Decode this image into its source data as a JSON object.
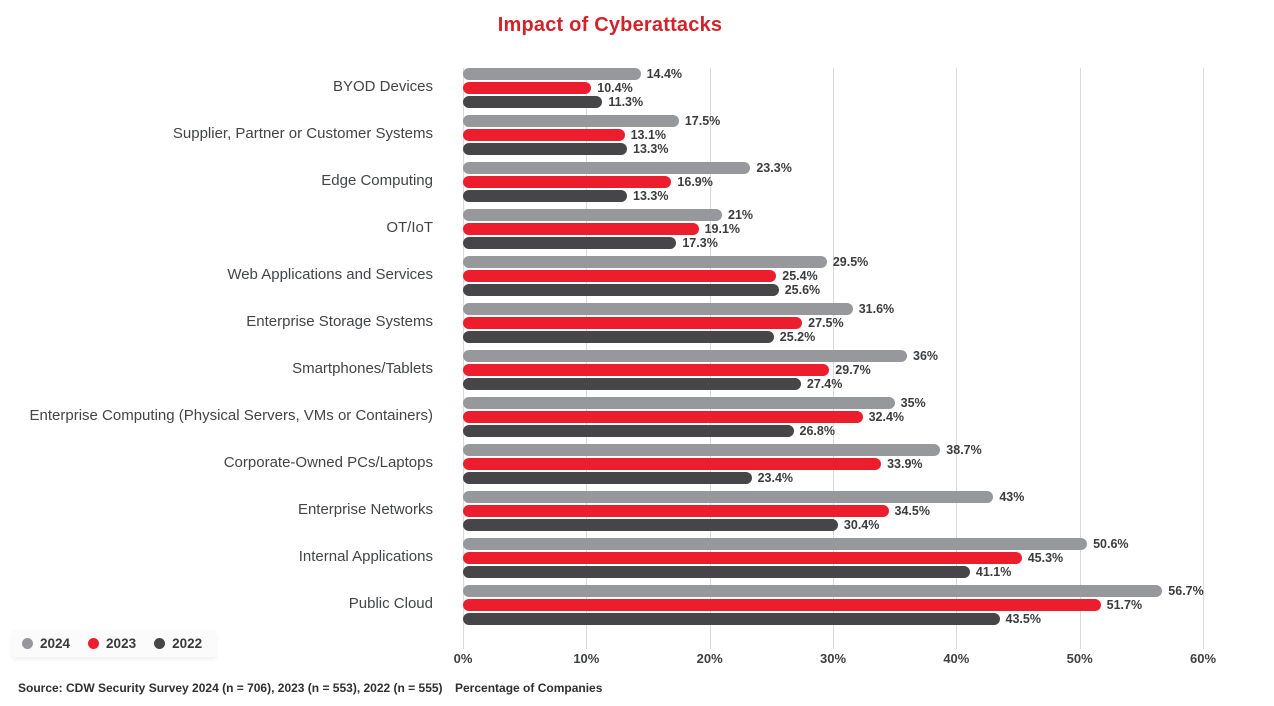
{
  "chart": {
    "title": "Impact of Cyberattacks",
    "title_color": "#d2232a",
    "source": "Source: CDW Security Survey 2024 (n = 706), 2023 (n = 553), 2022 (n = 555)",
    "xlabel": "Percentage of Companies"
  },
  "chart_data": {
    "type": "bar",
    "orientation": "horizontal",
    "title": "Impact of Cyberattacks",
    "categories": [
      "BYOD Devices",
      "Supplier, Partner or Customer Systems",
      "Edge Computing",
      "OT/IoT",
      "Web Applications and Services",
      "Enterprise Storage Systems",
      "Smartphones/Tablets",
      "Enterprise Computing (Physical Servers, VMs or Containers)",
      "Corporate-Owned PCs/Laptops",
      "Enterprise Networks",
      "Internal Applications",
      "Public Cloud"
    ],
    "series": [
      {
        "name": "2024",
        "color": "#97989c",
        "values": [
          14.4,
          17.5,
          23.3,
          21,
          29.5,
          31.6,
          36,
          35,
          38.7,
          43,
          50.6,
          56.7
        ]
      },
      {
        "name": "2023",
        "color": "#ec1e2d",
        "values": [
          10.4,
          13.1,
          16.9,
          19.1,
          25.4,
          27.5,
          29.7,
          32.4,
          33.9,
          34.5,
          45.3,
          51.7
        ]
      },
      {
        "name": "2022",
        "color": "#464649",
        "values": [
          11.3,
          13.3,
          13.3,
          17.3,
          25.6,
          25.2,
          27.4,
          26.8,
          23.4,
          30.4,
          41.1,
          43.5
        ]
      }
    ],
    "xlim": [
      0,
      60
    ],
    "xticks": [
      "0%",
      "10%",
      "20%",
      "30%",
      "40%",
      "50%",
      "60%"
    ],
    "xlabel": "Percentage of Companies",
    "legend_position": "bottom-left",
    "grid": "vertical",
    "value_label_format": "percent"
  }
}
